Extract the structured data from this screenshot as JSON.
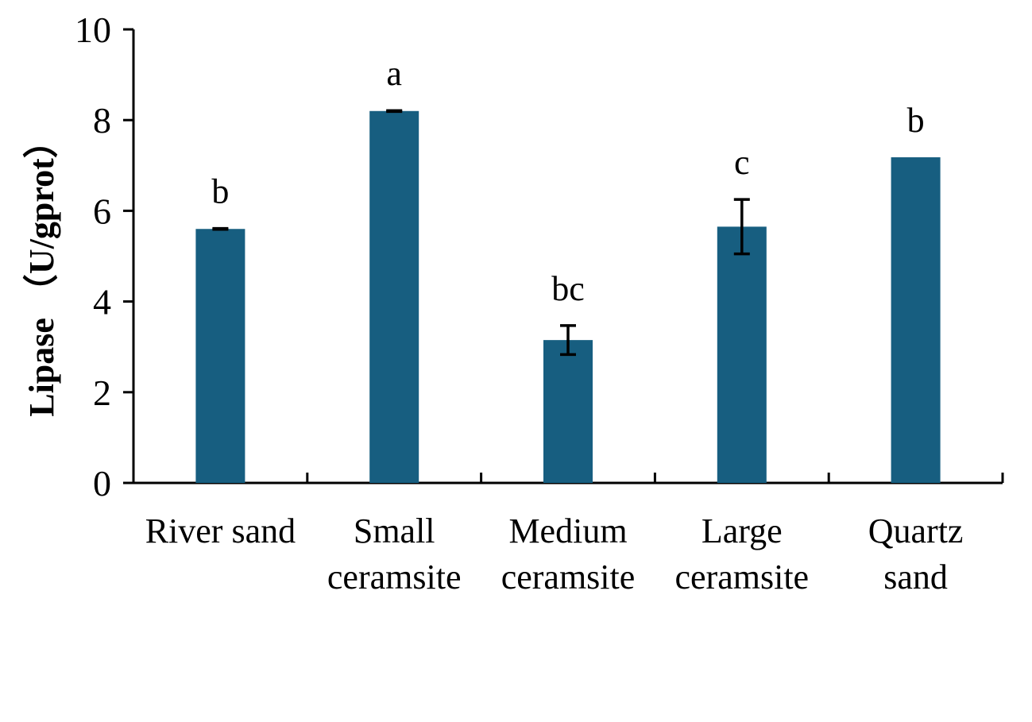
{
  "chart_data": {
    "type": "bar",
    "title": "",
    "ylabel": "Lipase （U/gprot）",
    "xlabel": "",
    "ylim": [
      0,
      10
    ],
    "yticks": [
      0,
      2,
      4,
      6,
      8,
      10
    ],
    "grid": false,
    "bar_color": "#175e80",
    "categories": [
      [
        "River sand"
      ],
      [
        "Small",
        "ceramsite"
      ],
      [
        "Medium",
        "ceramsite"
      ],
      [
        "Large",
        "ceramsite"
      ],
      [
        "Quartz",
        "sand"
      ]
    ],
    "values": [
      5.6,
      8.2,
      3.15,
      5.65,
      7.18
    ],
    "errors": [
      0.01,
      0.01,
      0.32,
      0.6,
      0
    ],
    "significance": [
      "b",
      "a",
      "bc",
      "c",
      "b"
    ]
  }
}
